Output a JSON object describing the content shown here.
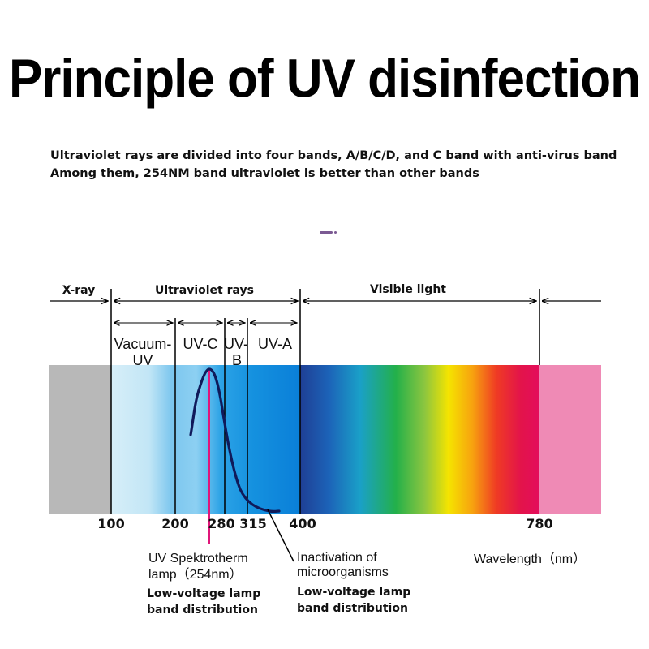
{
  "title": "Principle of UV disinfection",
  "subtitle": {
    "line1": "Ultraviolet rays are divided into four bands, A/B/C/D, and C band with anti-virus band",
    "line2": "Among them, 254NM band ultraviolet is better than other bands"
  },
  "regions": {
    "xray": "X-ray",
    "ultraviolet": "Ultraviolet rays",
    "visible": "Visible light"
  },
  "bands": {
    "vacuum_line1": "Vacuum-",
    "vacuum_line2": "UV",
    "uvc": "UV-C",
    "uvb_line1": "UV-",
    "uvb_line2": "B",
    "uva": "UV-A"
  },
  "axis_ticks": [
    "100",
    "200",
    "280",
    "315",
    "400",
    "780"
  ],
  "labels": {
    "lamp_line1": "UV Spektrotherm",
    "lamp_line2": "lamp（254nm）",
    "lamp_dist_line1": "Low-voltage lamp",
    "lamp_dist_line2": "band distribution",
    "inact_line1": "Inactivation  of",
    "inact_line2": "microorganisms",
    "inact_dist_line1": "Low-voltage lamp",
    "inact_dist_line2": "band distribution",
    "wavelength": "Wavelength（nm）"
  },
  "colors": {
    "xray_band": "#b8b8b8",
    "infrared_band": "#ef8ab5",
    "lamp_line": "#e0167a",
    "curve": "#101a5a"
  }
}
